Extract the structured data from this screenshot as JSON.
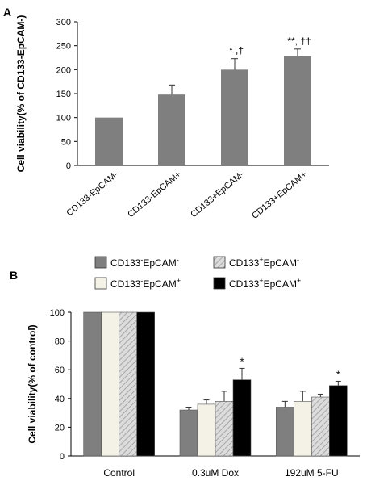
{
  "panels": {
    "a": {
      "label": "A"
    },
    "b": {
      "label": "B"
    }
  },
  "colors": {
    "bar_gray": "#7f7f7f",
    "cream": "#f4f2e6",
    "hatch_base": "#dcdcdc",
    "hatch_line": "#9a9a9a",
    "black": "#000000",
    "axis": "#000000"
  },
  "chart_data": [
    {
      "type": "bar",
      "panel": "A",
      "ylabel": "Cell viability(% of CD133-EpCAM-)",
      "xlabel": "",
      "ylim": [
        0,
        300
      ],
      "yticks": [
        0,
        50,
        100,
        150,
        200,
        250,
        300
      ],
      "categories": [
        "CD133-EpCAM-",
        "CD133-EpCAM+",
        "CD133+EpCAM-",
        "CD133+EpCAM+"
      ],
      "values": [
        100,
        148,
        200,
        228
      ],
      "errors": [
        0,
        20,
        23,
        15
      ],
      "annotations": [
        "",
        "",
        "* ,†",
        "**, ††"
      ],
      "grid": false
    },
    {
      "type": "bar",
      "panel": "B",
      "ylabel": "Cell viability(% of control)",
      "xlabel": "",
      "ylim": [
        0,
        100
      ],
      "yticks": [
        0,
        20,
        40,
        60,
        80,
        100
      ],
      "categories": [
        "Control",
        "0.3uM Dox",
        "192uM 5-FU"
      ],
      "legend_position": "top",
      "series": [
        {
          "name_parts": [
            "CD133",
            "-",
            "EpCAM",
            "-"
          ],
          "pattern": "gray",
          "values": [
            100,
            32,
            34
          ],
          "errors": [
            0,
            2,
            4
          ]
        },
        {
          "name_parts": [
            "CD133",
            "-",
            "EpCAM",
            "+"
          ],
          "pattern": "cream",
          "values": [
            100,
            36,
            38
          ],
          "errors": [
            0,
            3,
            7
          ]
        },
        {
          "name_parts": [
            "CD133",
            "+",
            "EpCAM",
            "-"
          ],
          "pattern": "hatch",
          "values": [
            100,
            38,
            41
          ],
          "errors": [
            0,
            7,
            2
          ]
        },
        {
          "name_parts": [
            "CD133",
            "+",
            "EpCAM",
            "+"
          ],
          "pattern": "black",
          "values": [
            100,
            53,
            49
          ],
          "errors": [
            0,
            8,
            3
          ]
        }
      ],
      "annotations": [
        {
          "category": 1,
          "series": 3,
          "text": "*"
        },
        {
          "category": 2,
          "series": 3,
          "text": "*"
        }
      ],
      "grid": false
    }
  ]
}
